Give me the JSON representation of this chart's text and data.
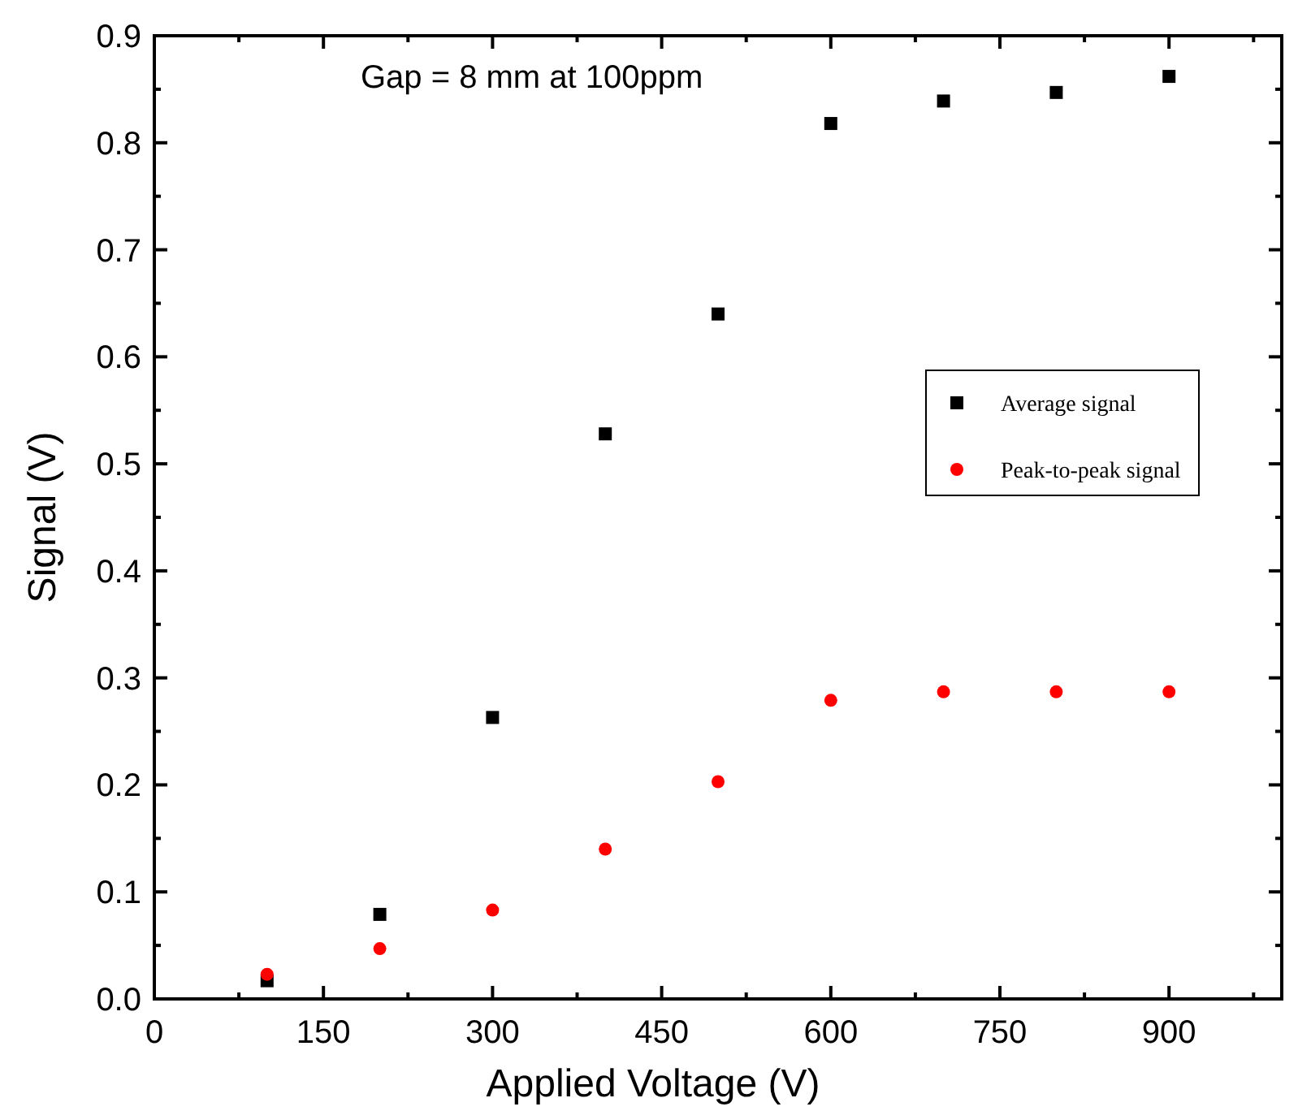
{
  "chart_data": {
    "type": "scatter",
    "xlabel": "Applied Voltage (V)",
    "ylabel": "Signal (V)",
    "annotations": [
      "Gap = 8 mm at 100ppm"
    ],
    "x": [
      100,
      200,
      300,
      400,
      500,
      600,
      700,
      800,
      900
    ],
    "series": [
      {
        "name": "Average signal",
        "color": "#000000",
        "marker": "square",
        "values": [
          0.017,
          0.079,
          0.263,
          0.528,
          0.64,
          0.818,
          0.839,
          0.847,
          0.862
        ]
      },
      {
        "name": "Peak-to-peak signal",
        "color": "#ff0000",
        "marker": "circle",
        "values": [
          0.023,
          0.047,
          0.083,
          0.14,
          0.203,
          0.279,
          0.287,
          0.287,
          0.287
        ]
      }
    ],
    "xlim": [
      0,
      1000
    ],
    "ylim": [
      0,
      0.9
    ],
    "xticks": [
      0,
      {
        "value": 75,
        "label": null
      },
      150,
      {
        "value": 225,
        "label": null
      },
      300,
      {
        "value": 375,
        "label": null
      },
      450,
      {
        "value": 525,
        "label": null
      },
      600,
      {
        "value": 675,
        "label": null
      },
      750,
      {
        "value": 825,
        "label": null
      },
      900,
      {
        "value": 975,
        "label": null
      }
    ],
    "yticks": [
      {
        "value": 0,
        "label": "0.0"
      },
      {
        "value": 0.05,
        "label": null
      },
      0.1,
      {
        "value": 0.15,
        "label": null
      },
      0.2,
      {
        "value": 0.25,
        "label": null
      },
      0.3,
      {
        "value": 0.35,
        "label": null
      },
      0.4,
      {
        "value": 0.45,
        "label": null
      },
      0.5,
      {
        "value": 0.55,
        "label": null
      },
      0.6,
      {
        "value": 0.65,
        "label": null
      },
      0.7,
      {
        "value": 0.75,
        "label": null
      },
      0.8,
      {
        "value": 0.85,
        "label": null
      },
      0.9
    ],
    "grid": false,
    "legend": "right"
  }
}
